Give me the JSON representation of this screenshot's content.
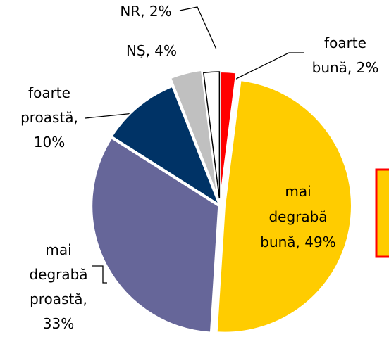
{
  "chart_data": {
    "type": "pie",
    "labels": [
      [
        "foarte",
        "bună, 2%"
      ],
      [
        "mai",
        "degrabă",
        "bună, 49%"
      ],
      [
        "mai",
        "degrabă",
        "proastă,",
        "33%"
      ],
      [
        "foarte",
        "proastă,",
        "10%"
      ],
      [
        "NŞ, 4%"
      ],
      [
        "NR, 2%"
      ]
    ],
    "values": [
      2,
      49,
      33,
      10,
      4,
      2
    ],
    "colors": [
      "#ff0000",
      "#ffcc00",
      "#666699",
      "#003366",
      "#c0c0c0",
      "#ffffff"
    ]
  }
}
